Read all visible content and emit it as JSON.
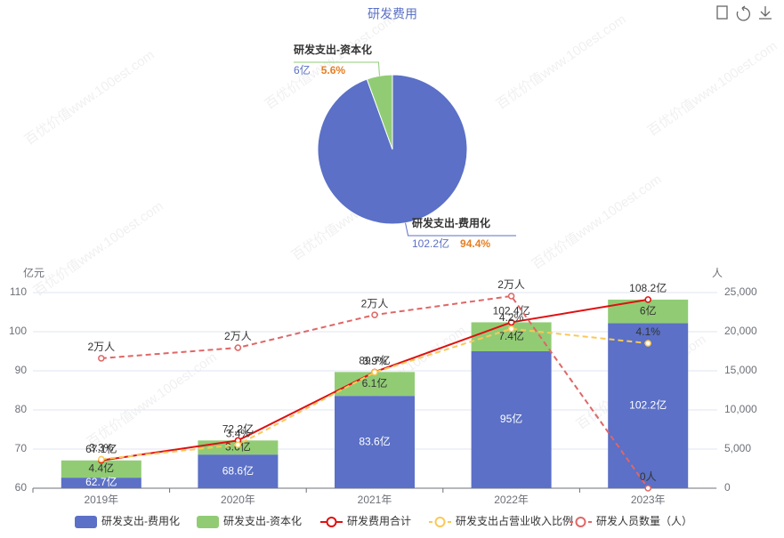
{
  "watermark": "百优价值www.100est.com",
  "chart_data": [
    {
      "type": "pie",
      "title": "研发费用",
      "categories": [
        "研发支出-费用化",
        "研发支出-资本化"
      ],
      "values": [
        102.2,
        6
      ],
      "value_labels": [
        "102.2亿",
        "6亿"
      ],
      "percent_labels": [
        "94.4%",
        "5.6%"
      ],
      "colors": [
        "#5b70c6",
        "#91cc75"
      ]
    },
    {
      "type": "combo",
      "categories": [
        "2019年",
        "2020年",
        "2021年",
        "2022年",
        "2023年"
      ],
      "y_label": "亿元",
      "y2_label": "人",
      "ylim": [
        60,
        110
      ],
      "yticks": [
        60,
        70,
        80,
        90,
        100,
        110
      ],
      "y2lim": [
        0,
        25000
      ],
      "y2ticks": [
        0,
        {
          "value": 5000,
          "label": "5,000"
        },
        {
          "value": 10000,
          "label": "10,000"
        },
        {
          "value": 15000,
          "label": "15,000"
        },
        {
          "value": 20000,
          "label": "20,000"
        },
        {
          "value": 25000,
          "label": "25,000"
        }
      ],
      "y3lim": [
        3.1,
        4.45
      ],
      "grid": true,
      "series": [
        {
          "name": "研发支出-费用化",
          "kind": "bar",
          "color": "#5b70c6",
          "values": [
            62.7,
            68.6,
            83.6,
            95,
            102.2
          ],
          "value_labels": [
            "62.7亿",
            "68.6亿",
            "83.6亿",
            "95亿",
            "102.2亿"
          ]
        },
        {
          "name": "研发支出-资本化",
          "kind": "bar",
          "color": "#91cc75",
          "values": [
            4.4,
            3.6,
            6.1,
            7.4,
            6
          ],
          "value_labels": [
            "4.4亿",
            "3.6亿",
            "6.1亿",
            "7.4亿",
            "6亿"
          ]
        },
        {
          "name": "研发费用合计",
          "kind": "line",
          "color": "#e01010",
          "values": [
            67.1,
            72.2,
            89.7,
            102.4,
            108.2
          ],
          "value_labels": [
            "67.1亿",
            "72.2亿",
            "89.7亿",
            "102.4亿",
            "108.2亿"
          ]
        },
        {
          "name": "研发支出占营业收入比例",
          "kind": "line",
          "dashed": true,
          "axis": "y3",
          "color": "#fac858",
          "values": [
            3.3,
            3.4,
            3.9,
            4.2,
            4.1
          ],
          "value_labels": [
            "3.3%",
            "3.4%",
            "3.9%",
            "4.2%",
            "4.1%"
          ]
        },
        {
          "name": "研发人员数量（人）",
          "kind": "line",
          "dashed": true,
          "axis": "y2",
          "color": "#e06666",
          "values": [
            16600,
            17950,
            22150,
            24550,
            0
          ],
          "value_labels": [
            "2万人",
            "2万人",
            "2万人",
            "2万人",
            "0人"
          ]
        }
      ]
    }
  ]
}
